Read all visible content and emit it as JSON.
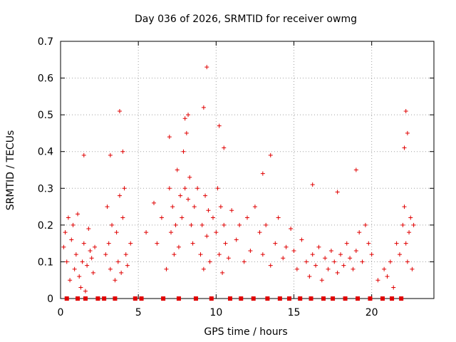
{
  "chart_data": {
    "type": "scatter",
    "title": "Day 036 of 2026, SRMTID for receiver owmg",
    "xlabel": "GPS time / hours",
    "ylabel": "SRMTID / TECUs",
    "xlim": [
      0,
      24
    ],
    "ylim": [
      0,
      0.7
    ],
    "xticks": [
      0,
      5,
      10,
      15,
      20
    ],
    "yticks": [
      0,
      0.1,
      0.2,
      0.3,
      0.4,
      0.5,
      0.6,
      0.7
    ],
    "xtick_labels": [
      "0",
      "5",
      "10",
      "15",
      "20"
    ],
    "ytick_labels": [
      "0",
      "0.1",
      "0.2",
      "0.3",
      "0.4",
      "0.5",
      "0.6",
      "0.7"
    ],
    "grid": true,
    "marker": "+",
    "color": "#e00000",
    "series": [
      {
        "x": [
          0.2,
          0.3,
          0.4,
          0.5,
          0.6,
          0.7,
          0.8,
          0.9,
          1.0,
          1.1,
          1.2,
          1.3,
          1.4,
          1.5,
          1.6,
          1.7,
          1.8,
          1.9,
          2.0,
          2.1,
          2.2,
          2.9,
          3.0,
          3.1,
          3.2,
          3.3,
          3.5,
          3.6,
          3.7,
          3.8,
          3.9,
          4.0,
          4.1,
          4.2,
          4.3,
          4.5,
          5.5,
          6.0,
          6.2,
          6.5,
          6.8,
          7.0,
          7.1,
          7.2,
          7.3,
          7.4,
          7.5,
          7.6,
          7.7,
          7.8,
          7.9,
          8.0,
          8.1,
          8.2,
          8.3,
          8.4,
          8.5,
          8.6,
          8.8,
          9.0,
          9.1,
          9.2,
          9.3,
          9.4,
          9.5,
          9.6,
          9.8,
          10.0,
          10.1,
          10.2,
          10.3,
          10.4,
          10.5,
          10.6,
          10.8,
          11.0,
          11.3,
          11.5,
          11.8,
          12.0,
          12.2,
          12.5,
          12.8,
          13.0,
          13.2,
          13.5,
          13.8,
          14.0,
          14.3,
          14.5,
          14.8,
          15.0,
          15.2,
          15.5,
          15.8,
          16.0,
          16.2,
          16.4,
          16.6,
          16.8,
          17.0,
          17.2,
          17.4,
          17.6,
          17.8,
          18.0,
          18.2,
          18.4,
          18.6,
          18.8,
          19.0,
          19.2,
          19.4,
          19.6,
          19.8,
          20.0,
          20.4,
          20.8,
          21.0,
          21.2,
          21.4,
          21.6,
          21.8,
          22.0,
          22.1,
          22.2,
          22.3,
          22.4,
          22.5,
          22.6,
          22.7,
          1.5,
          3.2,
          3.8,
          4.0,
          7.0,
          8.0,
          8.2,
          9.2,
          9.4,
          10.2,
          10.5,
          13.0,
          13.5,
          16.2,
          17.8,
          19.0,
          22.1,
          22.2,
          22.3,
          0.4,
          1.1,
          1.6,
          2.4,
          2.8,
          3.5,
          4.8,
          5.2,
          6.6,
          7.6,
          8.7,
          9.7,
          10.9,
          11.6,
          12.4,
          13.3,
          14.1,
          14.7,
          15.4,
          16.1,
          16.9,
          17.5,
          18.3,
          19.1,
          19.9,
          20.7,
          21.3,
          21.9
        ],
        "y": [
          0.14,
          0.18,
          0.1,
          0.22,
          0.05,
          0.16,
          0.2,
          0.08,
          0.12,
          0.23,
          0.06,
          0.03,
          0.1,
          0.15,
          0.02,
          0.09,
          0.19,
          0.13,
          0.11,
          0.07,
          0.14,
          0.12,
          0.25,
          0.15,
          0.08,
          0.2,
          0.05,
          0.18,
          0.1,
          0.28,
          0.07,
          0.22,
          0.3,
          0.12,
          0.09,
          0.15,
          0.18,
          0.26,
          0.15,
          0.22,
          0.08,
          0.3,
          0.18,
          0.25,
          0.12,
          0.2,
          0.35,
          0.14,
          0.28,
          0.22,
          0.4,
          0.3,
          0.45,
          0.27,
          0.33,
          0.2,
          0.15,
          0.25,
          0.3,
          0.12,
          0.2,
          0.08,
          0.28,
          0.17,
          0.24,
          0.1,
          0.22,
          0.18,
          0.3,
          0.12,
          0.25,
          0.07,
          0.2,
          0.15,
          0.11,
          0.24,
          0.16,
          0.2,
          0.1,
          0.22,
          0.13,
          0.25,
          0.18,
          0.12,
          0.2,
          0.09,
          0.15,
          0.22,
          0.11,
          0.14,
          0.19,
          0.13,
          0.08,
          0.16,
          0.1,
          0.06,
          0.12,
          0.09,
          0.14,
          0.05,
          0.11,
          0.08,
          0.13,
          0.1,
          0.07,
          0.12,
          0.09,
          0.15,
          0.11,
          0.08,
          0.13,
          0.18,
          0.1,
          0.2,
          0.15,
          0.12,
          0.05,
          0.08,
          0.06,
          0.1,
          0.03,
          0.15,
          0.12,
          0.2,
          0.25,
          0.15,
          0.1,
          0.18,
          0.22,
          0.08,
          0.2,
          0.39,
          0.39,
          0.51,
          0.4,
          0.44,
          0.49,
          0.5,
          0.52,
          0.63,
          0.47,
          0.41,
          0.34,
          0.39,
          0.31,
          0.29,
          0.35,
          0.41,
          0.51,
          0.45,
          0,
          0,
          0,
          0,
          0,
          0,
          0,
          0,
          0,
          0,
          0,
          0,
          0,
          0,
          0,
          0,
          0,
          0,
          0,
          0,
          0,
          0,
          0,
          0,
          0,
          0,
          0,
          0
        ]
      }
    ]
  }
}
